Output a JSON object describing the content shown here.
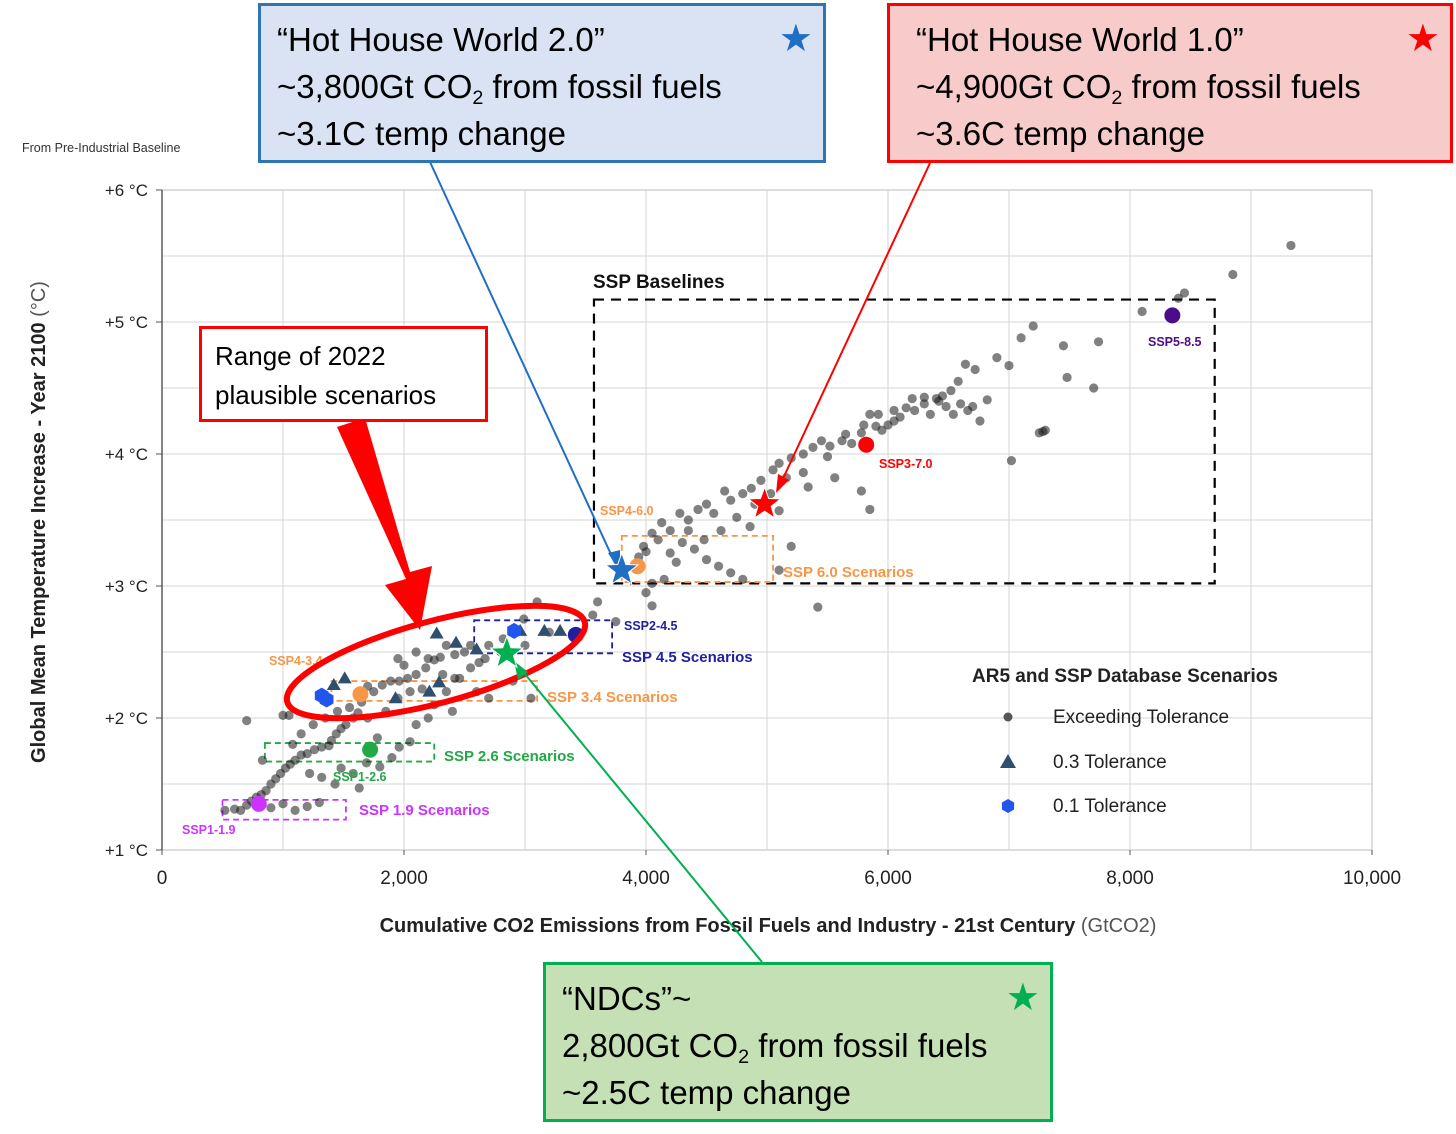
{
  "baseline_note": "From Pre-Industrial Baseline",
  "callouts": {
    "hhw2": {
      "line1": "“Hot House World 2.0”",
      "line2_pre": "~3,800Gt CO",
      "line2_sub": "2",
      "line2_post": " from fossil fuels",
      "line3": "~3.1C temp change",
      "star_icon": "blue-star-icon"
    },
    "hhw1": {
      "line1": "“Hot House World 1.0”",
      "line2_pre": "~4,900Gt CO",
      "line2_sub": "2",
      "line2_post": " from fossil fuels",
      "line3": "~3.6C temp change",
      "star_icon": "red-star-icon"
    },
    "ndc": {
      "line1": "“NDCs”~",
      "line2_pre": "2,800Gt CO",
      "line2_sub": "2",
      "line2_post": " from fossil fuels",
      "line3": "~2.5C temp change",
      "star_icon": "green-star-icon"
    },
    "range": {
      "line1": "Range of 2022",
      "line2": "plausible scenarios"
    }
  },
  "colors": {
    "blue": "#1f6fc5",
    "red": "#ff0000",
    "green": "#00b050",
    "orange": "#f79646",
    "navy": "#1f1f9f",
    "purple": "#4b0e8a",
    "magenta": "#cc33ff",
    "ssp_green": "#22a844",
    "tri": "#2f4f6f",
    "hex": "#2255ee"
  },
  "chart_data": {
    "type": "scatter",
    "xlabel": "Cumulative CO2 Emissions from Fossil Fuels and Industry - 21st Century",
    "xlabel_unit": "(GtCO2)",
    "ylabel": "Global Mean Temperature Increase - Year 2100",
    "ylabel_unit": "(°C)",
    "xlim": [
      0,
      10000
    ],
    "ylim": [
      1,
      6
    ],
    "xticks": [
      0,
      2000,
      4000,
      6000,
      8000,
      10000
    ],
    "xtick_labels": [
      "0",
      "2,000",
      "4,000",
      "6,000",
      "8,000",
      "10,000"
    ],
    "yticks": [
      1,
      2,
      3,
      4,
      5,
      6
    ],
    "ytick_labels": [
      "+1 °C",
      "+2 °C",
      "+3 °C",
      "+4 °C",
      "+5 °C",
      "+6 °C"
    ],
    "grid": true,
    "legend": {
      "title": "AR5 and SSP Database Scenarios",
      "placement": "bottom-right",
      "items": [
        {
          "label": "Exceeding Tolerance",
          "marker": "circle"
        },
        {
          "label": "0.3 Tolerance",
          "marker": "triangle"
        },
        {
          "label": "0.1 Tolerance",
          "marker": "hexagon"
        }
      ]
    },
    "ssp_markers": [
      {
        "label": "SSP5-8.5",
        "x": 8350,
        "y": 5.05,
        "color": "#4b0e8a"
      },
      {
        "label": "SSP3-7.0",
        "x": 5820,
        "y": 4.07,
        "color": "#ff0000"
      },
      {
        "label": "SSP4-6.0",
        "x": 3930,
        "y": 3.15,
        "color": "#f79646"
      },
      {
        "label": "SSP2-4.5",
        "x": 3420,
        "y": 2.63,
        "color": "#1f1f9f"
      },
      {
        "label": "SSP4-3.4",
        "x": 1640,
        "y": 2.18,
        "color": "#f79646"
      },
      {
        "label": "SSP1-2.6",
        "x": 1720,
        "y": 1.76,
        "color": "#22a844"
      },
      {
        "label": "SSP1-1.9",
        "x": 800,
        "y": 1.35,
        "color": "#cc33ff"
      }
    ],
    "scenario_boxes": [
      {
        "label": "SSP Baselines",
        "x0": 3570,
        "x1": 8700,
        "y0": 3.02,
        "y1": 5.17,
        "color": "#000000"
      },
      {
        "label": "SSP 6.0 Scenarios",
        "x0": 3800,
        "x1": 5050,
        "y0": 3.03,
        "y1": 3.38,
        "color": "#f79646"
      },
      {
        "label": "SSP 4.5 Scenarios",
        "x0": 2580,
        "x1": 3720,
        "y0": 2.49,
        "y1": 2.74,
        "color": "#1f1f9f"
      },
      {
        "label": "SSP 3.4 Scenarios",
        "x0": 1400,
        "x1": 3100,
        "y0": 2.13,
        "y1": 2.28,
        "color": "#f79646"
      },
      {
        "label": "SSP 2.6 Scenarios",
        "x0": 850,
        "x1": 2250,
        "y0": 1.67,
        "y1": 1.81,
        "color": "#22a844"
      },
      {
        "label": "SSP 1.9 Scenarios",
        "x0": 500,
        "x1": 1520,
        "y0": 1.23,
        "y1": 1.38,
        "color": "#cc33ff"
      }
    ],
    "highlight_stars": [
      {
        "name": "Hot House World 2.0",
        "x": 3800,
        "y": 3.12,
        "color": "#1f6fc5"
      },
      {
        "name": "Hot House World 1.0",
        "x": 4980,
        "y": 3.62,
        "color": "#ff0000"
      },
      {
        "name": "NDCs",
        "x": 2850,
        "y": 2.49,
        "color": "#00b050"
      }
    ],
    "tolerance_03": [
      [
        1510,
        2.3
      ],
      [
        2270,
        2.64
      ],
      [
        2430,
        2.57
      ],
      [
        2600,
        2.52
      ],
      [
        2960,
        2.66
      ],
      [
        3160,
        2.66
      ],
      [
        3290,
        2.66
      ],
      [
        1420,
        2.25
      ],
      [
        1930,
        2.15
      ],
      [
        2210,
        2.2
      ],
      [
        2290,
        2.27
      ]
    ],
    "tolerance_01": [
      [
        1320,
        2.17
      ],
      [
        1360,
        2.14
      ],
      [
        2910,
        2.66
      ]
    ],
    "exceeding": [
      [
        9330,
        5.58
      ],
      [
        8850,
        5.36
      ],
      [
        8450,
        5.22
      ],
      [
        8400,
        5.18
      ],
      [
        8100,
        5.08
      ],
      [
        7740,
        4.85
      ],
      [
        7450,
        4.82
      ],
      [
        7200,
        4.97
      ],
      [
        7100,
        4.88
      ],
      [
        6900,
        4.73
      ],
      [
        6720,
        4.64
      ],
      [
        6640,
        4.68
      ],
      [
        6580,
        4.55
      ],
      [
        7000,
        4.67
      ],
      [
        7700,
        4.5
      ],
      [
        7480,
        4.58
      ],
      [
        7300,
        4.18
      ],
      [
        7280,
        4.17
      ],
      [
        7250,
        4.16
      ],
      [
        7020,
        3.95
      ],
      [
        6520,
        4.48
      ],
      [
        6450,
        4.44
      ],
      [
        6400,
        4.42
      ],
      [
        6300,
        4.38
      ],
      [
        6220,
        4.33
      ],
      [
        6150,
        4.35
      ],
      [
        6100,
        4.28
      ],
      [
        6050,
        4.25
      ],
      [
        6000,
        4.22
      ],
      [
        5950,
        4.18
      ],
      [
        5900,
        4.21
      ],
      [
        6350,
        4.3
      ],
      [
        6480,
        4.36
      ],
      [
        6600,
        4.38
      ],
      [
        6700,
        4.36
      ],
      [
        6820,
        4.41
      ],
      [
        5850,
        4.3
      ],
      [
        5780,
        4.16
      ],
      [
        5700,
        4.08
      ],
      [
        5620,
        4.1
      ],
      [
        5520,
        4.06
      ],
      [
        5450,
        4.1
      ],
      [
        5380,
        4.05
      ],
      [
        5300,
        4.0
      ],
      [
        5200,
        3.97
      ],
      [
        5100,
        3.93
      ],
      [
        5050,
        3.88
      ],
      [
        4950,
        3.8
      ],
      [
        4870,
        3.74
      ],
      [
        4800,
        3.7
      ],
      [
        4700,
        3.65
      ],
      [
        4650,
        3.72
      ],
      [
        4560,
        3.55
      ],
      [
        4500,
        3.62
      ],
      [
        4430,
        3.58
      ],
      [
        4350,
        3.5
      ],
      [
        4280,
        3.55
      ],
      [
        4200,
        3.42
      ],
      [
        4130,
        3.48
      ],
      [
        4050,
        3.4
      ],
      [
        3980,
        3.3
      ],
      [
        3940,
        3.22
      ],
      [
        4000,
        3.26
      ],
      [
        4100,
        3.35
      ],
      [
        4200,
        3.25
      ],
      [
        4300,
        3.33
      ],
      [
        4400,
        3.28
      ],
      [
        4500,
        3.2
      ],
      [
        4600,
        3.15
      ],
      [
        4700,
        3.1
      ],
      [
        4800,
        3.05
      ],
      [
        5100,
        3.12
      ],
      [
        5200,
        3.3
      ],
      [
        5420,
        2.84
      ],
      [
        5560,
        3.82
      ],
      [
        5780,
        3.72
      ],
      [
        5850,
        3.58
      ],
      [
        5340,
        3.75
      ],
      [
        5100,
        3.57
      ],
      [
        4860,
        3.45
      ],
      [
        4000,
        2.95
      ],
      [
        4050,
        2.85
      ],
      [
        4150,
        3.05
      ],
      [
        3560,
        2.78
      ],
      [
        3100,
        2.88
      ],
      [
        2990,
        2.75
      ],
      [
        2820,
        2.6
      ],
      [
        2700,
        2.55
      ],
      [
        2550,
        2.55
      ],
      [
        2420,
        2.48
      ],
      [
        2350,
        2.55
      ],
      [
        2300,
        2.46
      ],
      [
        2250,
        2.44
      ],
      [
        2180,
        2.38
      ],
      [
        2100,
        2.33
      ],
      [
        2030,
        2.3
      ],
      [
        1960,
        2.28
      ],
      [
        1890,
        2.28
      ],
      [
        1820,
        2.25
      ],
      [
        1750,
        2.2
      ],
      [
        1700,
        2.24
      ],
      [
        1650,
        2.12
      ],
      [
        1620,
        2.04
      ],
      [
        1580,
        2.0
      ],
      [
        1520,
        1.95
      ],
      [
        1480,
        1.92
      ],
      [
        1440,
        1.88
      ],
      [
        1400,
        1.83
      ],
      [
        1380,
        1.79
      ],
      [
        1320,
        1.78
      ],
      [
        1260,
        1.76
      ],
      [
        1200,
        1.73
      ],
      [
        1150,
        1.72
      ],
      [
        1100,
        1.68
      ],
      [
        1060,
        1.65
      ],
      [
        1020,
        1.62
      ],
      [
        980,
        1.58
      ],
      [
        940,
        1.54
      ],
      [
        900,
        1.5
      ],
      [
        860,
        1.45
      ],
      [
        820,
        1.42
      ],
      [
        780,
        1.4
      ],
      [
        740,
        1.37
      ],
      [
        700,
        1.34
      ],
      [
        650,
        1.3
      ],
      [
        600,
        1.31
      ],
      [
        520,
        1.3
      ],
      [
        900,
        1.32
      ],
      [
        1000,
        1.35
      ],
      [
        1100,
        1.3
      ],
      [
        1200,
        1.33
      ],
      [
        1300,
        1.36
      ],
      [
        1050,
        2.02
      ],
      [
        1000,
        2.02
      ],
      [
        1080,
        1.8
      ],
      [
        1150,
        1.88
      ],
      [
        1250,
        1.95
      ],
      [
        1350,
        2.0
      ],
      [
        1450,
        2.05
      ],
      [
        1550,
        2.08
      ],
      [
        1700,
        2.0
      ],
      [
        1850,
        2.05
      ],
      [
        1950,
        2.15
      ],
      [
        2050,
        2.2
      ],
      [
        2150,
        2.22
      ],
      [
        2250,
        2.1
      ],
      [
        2400,
        2.05
      ],
      [
        2600,
        2.2
      ],
      [
        2700,
        2.15
      ],
      [
        2900,
        2.28
      ],
      [
        3050,
        2.15
      ],
      [
        2000,
        2.4
      ],
      [
        1950,
        2.45
      ],
      [
        2100,
        2.5
      ],
      [
        2200,
        2.45
      ],
      [
        2320,
        2.33
      ],
      [
        2420,
        2.3
      ],
      [
        2500,
        2.5
      ],
      [
        2620,
        2.42
      ],
      [
        1780,
        1.85
      ],
      [
        1900,
        1.7
      ],
      [
        2050,
        1.82
      ],
      [
        700,
        1.98
      ],
      [
        830,
        1.68
      ],
      [
        1480,
        1.62
      ],
      [
        1580,
        1.58
      ],
      [
        1690,
        1.66
      ],
      [
        1800,
        1.63
      ],
      [
        1220,
        1.58
      ],
      [
        1320,
        1.55
      ],
      [
        1430,
        1.5
      ],
      [
        1630,
        1.47
      ],
      [
        1960,
        1.78
      ],
      [
        2100,
        1.95
      ],
      [
        2200,
        2.0
      ],
      [
        2350,
        2.2
      ],
      [
        2460,
        2.3
      ],
      [
        2550,
        2.38
      ],
      [
        2670,
        2.45
      ],
      [
        2800,
        2.5
      ],
      [
        3000,
        2.55
      ],
      [
        3200,
        2.65
      ],
      [
        3600,
        2.88
      ],
      [
        3750,
        2.73
      ],
      [
        4050,
        3.02
      ],
      [
        4250,
        3.18
      ],
      [
        4350,
        3.42
      ],
      [
        4480,
        3.35
      ],
      [
        4620,
        3.42
      ],
      [
        4750,
        3.52
      ],
      [
        4900,
        3.62
      ],
      [
        5030,
        3.7
      ],
      [
        5160,
        3.82
      ],
      [
        5300,
        3.86
      ],
      [
        5500,
        3.98
      ],
      [
        5650,
        4.15
      ],
      [
        5800,
        4.22
      ],
      [
        5920,
        4.3
      ],
      [
        6050,
        4.33
      ],
      [
        6200,
        4.42
      ],
      [
        6300,
        4.43
      ],
      [
        6420,
        4.4
      ],
      [
        6540,
        4.3
      ],
      [
        6660,
        4.33
      ],
      [
        6760,
        4.25
      ]
    ]
  }
}
